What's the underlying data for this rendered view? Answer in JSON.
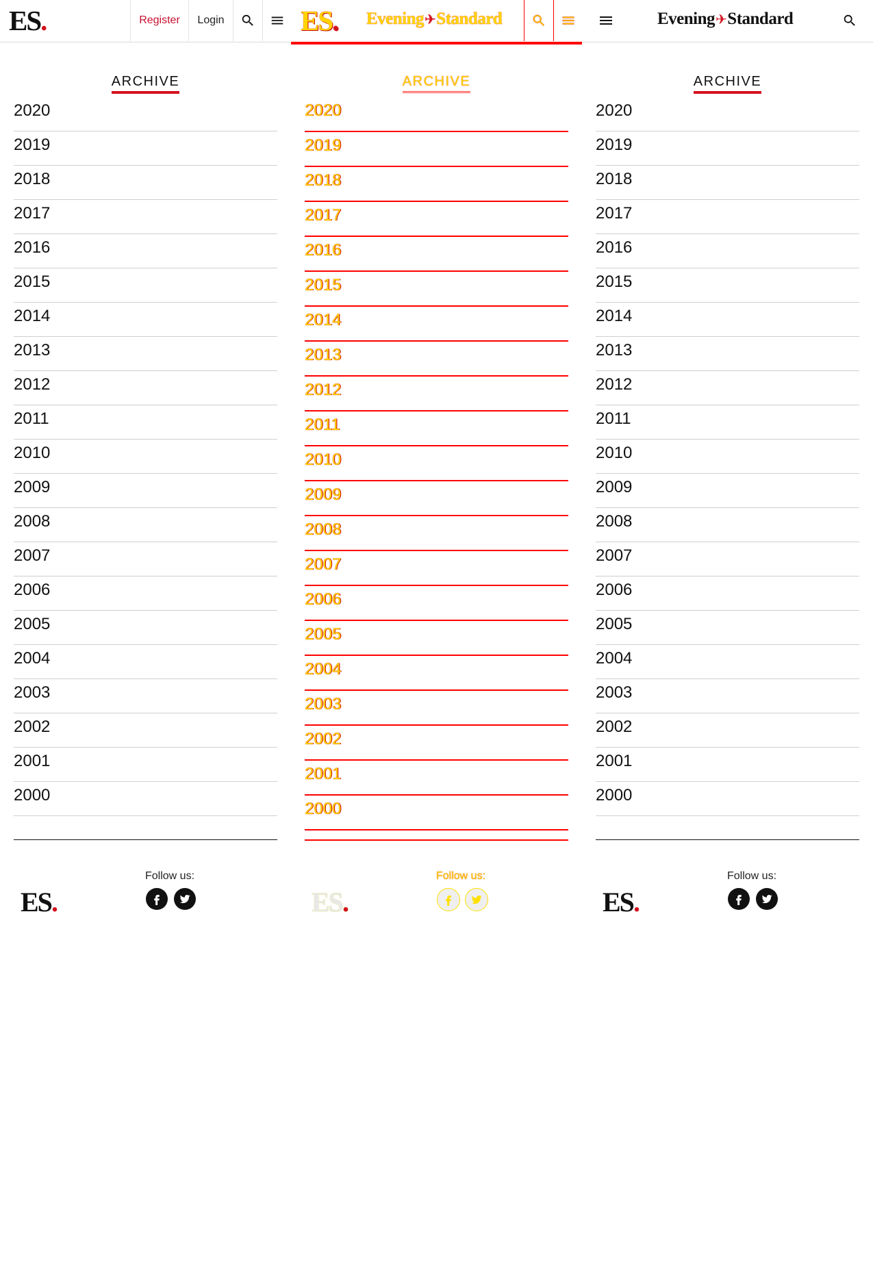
{
  "brand": {
    "short_logo": "ES",
    "logo_dot": ".",
    "wordmark_left": "Evening",
    "wordmark_sep": "✈",
    "wordmark_right": "Standard",
    "accent": "#d3111f"
  },
  "header": {
    "register_label": "Register",
    "login_label": "Login",
    "search_icon": "search-icon",
    "menu_icon": "menu-icon"
  },
  "archive": {
    "title": "ARCHIVE",
    "years": [
      "2020",
      "2019",
      "2018",
      "2017",
      "2016",
      "2015",
      "2014",
      "2013",
      "2012",
      "2011",
      "2010",
      "2009",
      "2008",
      "2007",
      "2006",
      "2005",
      "2004",
      "2003",
      "2002",
      "2001",
      "2000"
    ]
  },
  "footer": {
    "follow_label": "Follow us:",
    "social": [
      "facebook-icon",
      "twitter-icon"
    ]
  }
}
